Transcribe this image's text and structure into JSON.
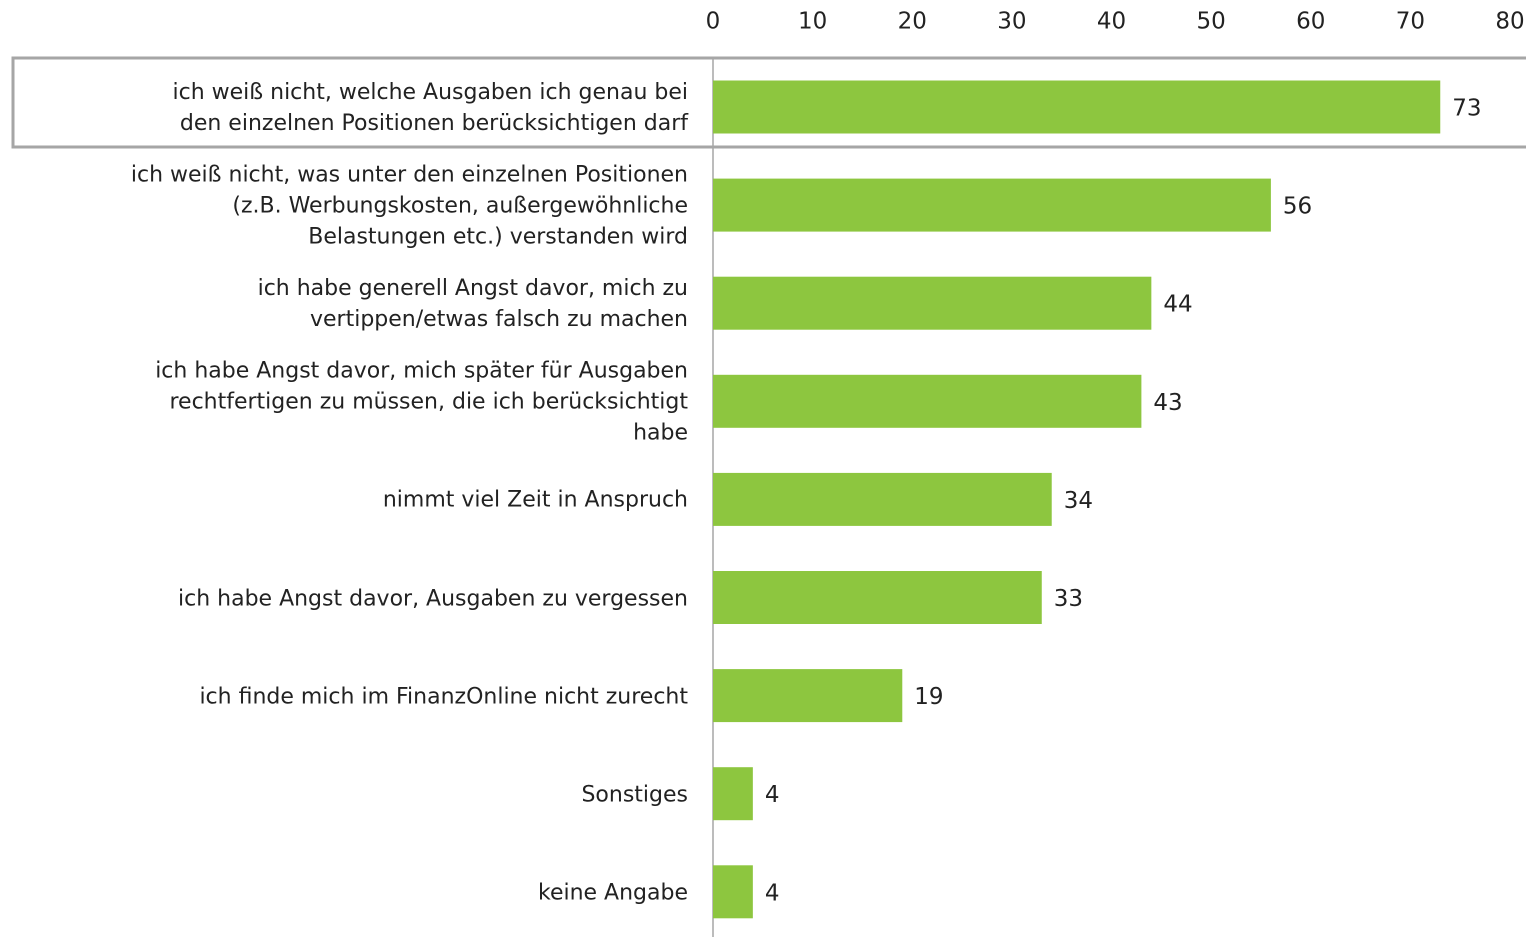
{
  "chart_data": {
    "type": "bar",
    "orientation": "horizontal",
    "categories": [
      "ich weiß nicht, welche Ausgaben ich genau bei\nden einzelnen Positionen berücksichtigen darf",
      "ich weiß nicht, was unter den einzelnen Positionen\n(z.B. Werbungskosten, außergewöhnliche\nBelastungen etc.) verstanden wird",
      "ich habe generell Angst davor, mich zu\nvertippen/etwas falsch zu machen",
      "ich habe Angst davor, mich später für Ausgaben\nrechtfertigen zu müssen, die ich berücksichtigt\nhabe",
      "nimmt viel Zeit in Anspruch",
      "ich habe Angst davor, Ausgaben zu vergessen",
      "ich finde mich im FinanzOnline nicht zurecht",
      "Sonstiges",
      "keine Angabe"
    ],
    "values": [
      73,
      56,
      44,
      43,
      34,
      33,
      19,
      4,
      4
    ],
    "color": "#8dc63f",
    "xlim": [
      0,
      80
    ],
    "xticks": [
      0,
      10,
      20,
      30,
      40,
      50,
      60,
      70,
      80
    ],
    "grid": false
  }
}
